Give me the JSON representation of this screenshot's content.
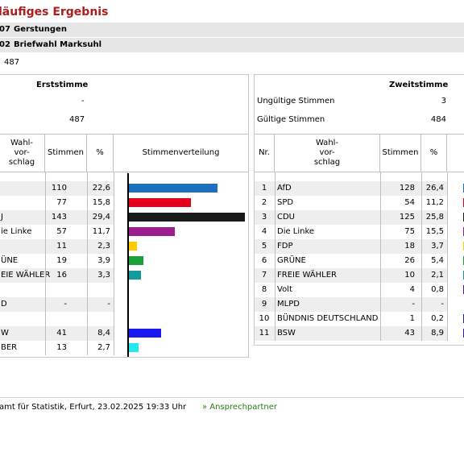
{
  "header": {
    "title": "läufiges Ergebnis",
    "bar1_code": "07",
    "bar1_name": "Gerstungen",
    "bar2_code": "02",
    "bar2_name": "Briefwahl Marksuhl",
    "voters_value": "487"
  },
  "left": {
    "title": "Erststimme",
    "invalid_value": "-",
    "valid_value": "487",
    "columns": {
      "wahlvorschlag": "Wahl-\nvor-\nschlag",
      "stimmen": "Stimmen",
      "percent": "%",
      "verteilung": "Stimmenverteilung"
    },
    "rows": [
      {
        "name": "",
        "votes": "110",
        "pct": "22,6",
        "value": 22.6,
        "color": "#1f6fbf"
      },
      {
        "name": "",
        "votes": "77",
        "pct": "15,8",
        "value": 15.8,
        "color": "#e3001b"
      },
      {
        "name": "J",
        "votes": "143",
        "pct": "29,4",
        "value": 29.4,
        "color": "#1a1a1a"
      },
      {
        "name": "ie Linke",
        "votes": "57",
        "pct": "11,7",
        "value": 11.7,
        "color": "#9b1d8f"
      },
      {
        "name": "",
        "votes": "11",
        "pct": "2,3",
        "value": 2.3,
        "color": "#ffcc00"
      },
      {
        "name": "ÜNE",
        "votes": "19",
        "pct": "3,9",
        "value": 3.9,
        "color": "#1aa03a"
      },
      {
        "name": "EIE WÄHLER",
        "votes": "16",
        "pct": "3,3",
        "value": 3.3,
        "color": "#149a9a"
      },
      {
        "name": "",
        "votes": "",
        "pct": "",
        "value": 0,
        "color": ""
      },
      {
        "name": "D",
        "votes": "-",
        "pct": "-",
        "value": 0,
        "color": ""
      },
      {
        "name": "",
        "votes": "",
        "pct": "",
        "value": 0,
        "color": ""
      },
      {
        "name": "W",
        "votes": "41",
        "pct": "8,4",
        "value": 8.4,
        "color": "#1a1aee"
      },
      {
        "name": "BER",
        "votes": "13",
        "pct": "2,7",
        "value": 2.7,
        "color": "#22e8f0"
      }
    ]
  },
  "right": {
    "title": "Zweitstimme",
    "invalid_label": "Ungültige Stimmen",
    "invalid_value": "3",
    "valid_label": "Gültige Stimmen",
    "valid_value": "484",
    "columns": {
      "nr": "Nr.",
      "wahlvorschlag": "Wahl-\nvor-\nschlag",
      "stimmen": "Stimmen",
      "percent": "%"
    },
    "rows": [
      {
        "nr": "1",
        "name": "AfD",
        "votes": "128",
        "pct": "26,4",
        "color": "#1f6fbf"
      },
      {
        "nr": "2",
        "name": "SPD",
        "votes": "54",
        "pct": "11,2",
        "color": "#e3001b"
      },
      {
        "nr": "3",
        "name": "CDU",
        "votes": "125",
        "pct": "25,8",
        "color": "#1a1a1a"
      },
      {
        "nr": "4",
        "name": "Die Linke",
        "votes": "75",
        "pct": "15,5",
        "color": "#9b1d8f"
      },
      {
        "nr": "5",
        "name": "FDP",
        "votes": "18",
        "pct": "3,7",
        "color": "#ffcc00"
      },
      {
        "nr": "6",
        "name": "GRÜNE",
        "votes": "26",
        "pct": "5,4",
        "color": "#1aa03a"
      },
      {
        "nr": "7",
        "name": "FREIE WÄHLER",
        "votes": "10",
        "pct": "2,1",
        "color": "#149a9a"
      },
      {
        "nr": "8",
        "name": "Volt",
        "votes": "4",
        "pct": "0,8",
        "color": "#4b1b8a"
      },
      {
        "nr": "9",
        "name": "MLPD",
        "votes": "-",
        "pct": "-",
        "color": ""
      },
      {
        "nr": "10",
        "name": "BÜNDNIS DEUTSCHLAND",
        "votes": "1",
        "pct": "0,2",
        "color": "#1a2a8a"
      },
      {
        "nr": "11",
        "name": "BSW",
        "votes": "43",
        "pct": "8,9",
        "color": "#1a1aee"
      }
    ]
  },
  "footer": {
    "source": "amt für Statistik, Erfurt, 23.02.2025 19:33 Uhr",
    "contact_link": "» Ansprechpartner"
  }
}
